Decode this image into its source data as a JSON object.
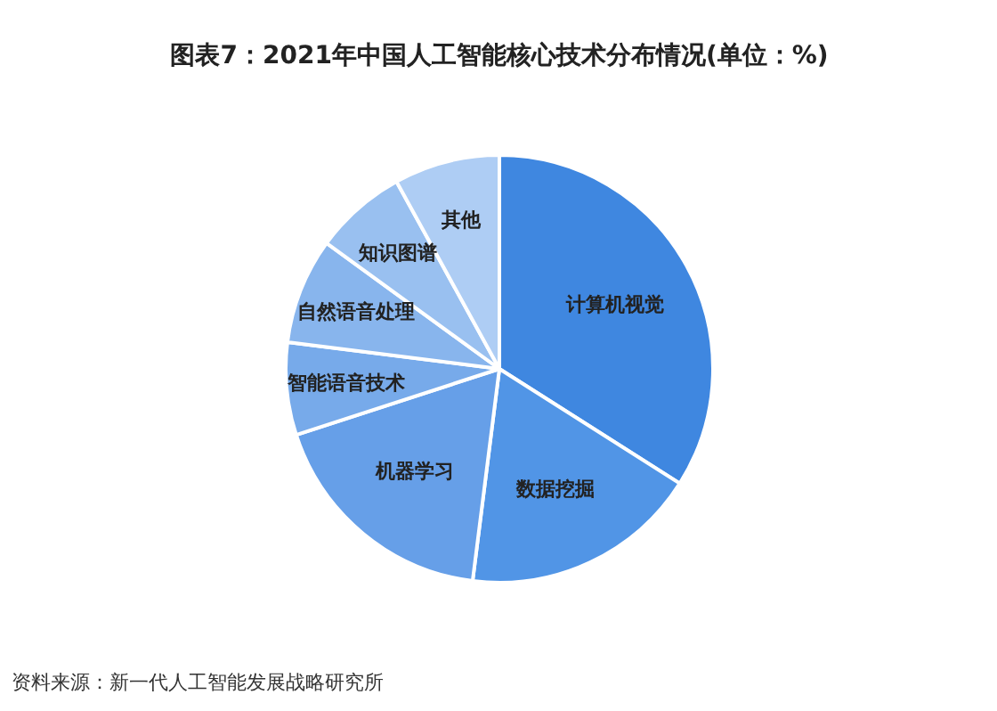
{
  "chart_data": {
    "type": "pie",
    "title": "图表7：2021年中国人工智能核心技术分布情况(单位：%)",
    "categories": [
      "计算机视觉",
      "数据挖掘",
      "机器学习",
      "智能语音技术",
      "自然语音处理",
      "知识图谱",
      "其他"
    ],
    "values": [
      34,
      18,
      18,
      7,
      8,
      7,
      8
    ],
    "colors": [
      "#3f87e0",
      "#5195e6",
      "#669fe8",
      "#77aaea",
      "#88b5ed",
      "#99c0f0",
      "#aecdf4"
    ],
    "annotations": [
      "资料来源：新一代人工智能发展战略研究所"
    ]
  }
}
